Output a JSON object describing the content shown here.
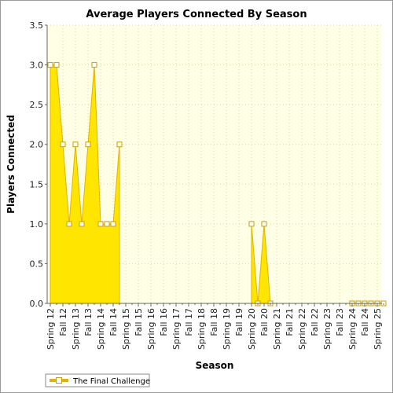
{
  "chart_data": {
    "type": "area",
    "title": "Average Players Connected By Season",
    "xlabel": "Season",
    "ylabel": "Players Connected",
    "ylim": [
      0,
      3.5
    ],
    "yticks": [
      "0.0",
      "0.5",
      "1.0",
      "1.5",
      "2.0",
      "2.5",
      "3.0",
      "3.5"
    ],
    "grid": true,
    "legend_position": "bottom-left",
    "colors": {
      "plot_background": "#ffffe6",
      "area_fill": "#ffe500",
      "area_edge": "#e0b400",
      "marker_edge": "#c8a000",
      "grid": "#d8d8b0"
    },
    "categories": [
      "Spring 12",
      "",
      "Fall 12",
      "",
      "Spring 13",
      "",
      "Fall 13",
      "",
      "Spring 14",
      "",
      "Fall 14",
      "",
      "Spring 15",
      "",
      "Fall 15",
      "",
      "Spring 16",
      "",
      "Fall 16",
      "",
      "Spring 17",
      "",
      "Fall 17",
      "",
      "Spring 18",
      "",
      "Fall 18",
      "",
      "Spring 19",
      "",
      "Fall 19",
      "",
      "Spring 20",
      "",
      "Fall 20",
      "",
      "Spring 21",
      "",
      "Fall 21",
      "",
      "Spring 22",
      "",
      "Fall 22",
      "",
      "Spring 23",
      "",
      "Fall 23",
      "",
      "Spring 24",
      "",
      "Fall 24",
      "",
      "Spring 25",
      ""
    ],
    "series": [
      {
        "name": "The Final Challenge",
        "values": [
          3,
          3,
          2,
          1,
          2,
          1,
          2,
          3,
          1,
          1,
          1,
          2,
          null,
          null,
          null,
          null,
          null,
          null,
          null,
          null,
          null,
          null,
          null,
          null,
          null,
          null,
          null,
          null,
          null,
          null,
          null,
          null,
          1,
          0,
          1,
          0,
          null,
          null,
          null,
          null,
          null,
          null,
          null,
          null,
          null,
          null,
          null,
          null,
          0,
          0,
          0,
          0,
          0,
          0
        ]
      }
    ]
  }
}
